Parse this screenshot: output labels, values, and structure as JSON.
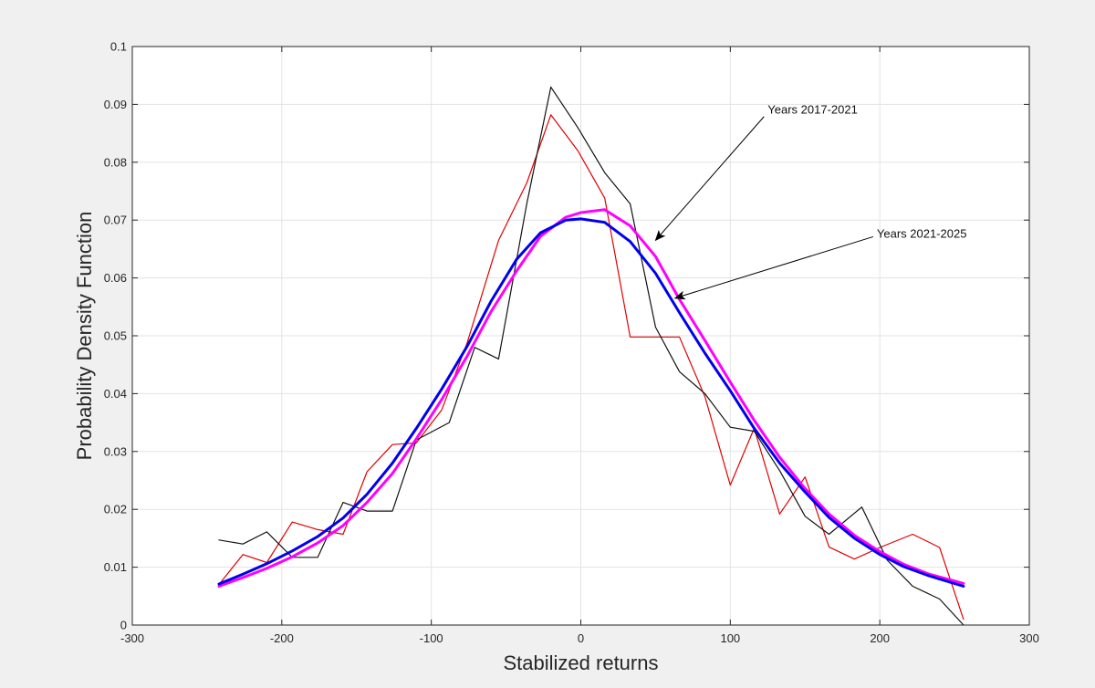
{
  "chart_data": {
    "type": "line",
    "title": "",
    "xlabel": "Stabilized returns",
    "ylabel": "Probability Density Function",
    "xlim": [
      -300,
      300
    ],
    "ylim": [
      0,
      0.1
    ],
    "xticks": [
      -300,
      -200,
      -100,
      0,
      100,
      200,
      300
    ],
    "yticks": [
      0,
      0.01,
      0.02,
      0.03,
      0.04,
      0.05,
      0.06,
      0.07,
      0.08,
      0.09,
      0.1
    ],
    "xtick_labels": [
      "-300",
      "-200",
      "-100",
      "0",
      "100",
      "200",
      "300"
    ],
    "ytick_labels": [
      "0",
      "0.01",
      "0.02",
      "0.03",
      "0.04",
      "0.05",
      "0.06",
      "0.07",
      "0.08",
      "0.09",
      "0.1"
    ],
    "grid": true,
    "series": [
      {
        "color": "#ff00ff",
        "x": [
          -242,
          -226,
          -210,
          -193,
          -176,
          -159,
          -143,
          -126,
          -110,
          -93,
          -76,
          -60,
          -43,
          -27,
          -10,
          0,
          16,
          33,
          50,
          66,
          83,
          100,
          116,
          133,
          150,
          166,
          183,
          200,
          216,
          233,
          256
        ],
        "y": [
          0.0067,
          0.0082,
          0.0098,
          0.0118,
          0.0142,
          0.0172,
          0.0212,
          0.0262,
          0.0322,
          0.039,
          0.0465,
          0.0542,
          0.0612,
          0.0672,
          0.0705,
          0.0713,
          0.0718,
          0.069,
          0.0637,
          0.0563,
          0.0492,
          0.042,
          0.0354,
          0.029,
          0.0236,
          0.0192,
          0.0155,
          0.0127,
          0.0105,
          0.0088,
          0.0072
        ]
      },
      {
        "color": "#0000ee",
        "x": [
          -242,
          -226,
          -210,
          -193,
          -176,
          -159,
          -143,
          -126,
          -110,
          -93,
          -76,
          -60,
          -43,
          -27,
          -10,
          0,
          16,
          33,
          50,
          66,
          83,
          100,
          116,
          133,
          150,
          166,
          183,
          200,
          216,
          233,
          256
        ],
        "y": [
          0.0071,
          0.0088,
          0.0106,
          0.0128,
          0.0153,
          0.0185,
          0.0226,
          0.028,
          0.034,
          0.0408,
          0.0482,
          0.056,
          0.0632,
          0.0678,
          0.07,
          0.0702,
          0.0696,
          0.0663,
          0.0608,
          0.054,
          0.047,
          0.0405,
          0.034,
          0.028,
          0.023,
          0.0186,
          0.015,
          0.0122,
          0.0101,
          0.0085,
          0.0067
        ]
      },
      {
        "color": "#e00000",
        "x": [
          -242,
          -226,
          -210,
          -193,
          -176,
          -159,
          -143,
          -126,
          -110,
          -93,
          -76,
          -55,
          -36,
          -20,
          -2,
          16,
          33,
          50,
          66,
          83,
          100,
          116,
          133,
          150,
          166,
          183,
          200,
          222,
          240,
          256
        ],
        "y": [
          0.007,
          0.0122,
          0.0108,
          0.0178,
          0.0165,
          0.0157,
          0.0265,
          0.0312,
          0.0315,
          0.0372,
          0.0488,
          0.0665,
          0.0765,
          0.0882,
          0.082,
          0.0738,
          0.0498,
          0.0498,
          0.0498,
          0.0395,
          0.0242,
          0.034,
          0.0192,
          0.0256,
          0.0135,
          0.0114,
          0.0134,
          0.0157,
          0.0134,
          0.001
        ]
      },
      {
        "color": "#111111",
        "x": [
          -242,
          -226,
          -210,
          -193,
          -176,
          -159,
          -143,
          -126,
          -110,
          -88,
          -71,
          -55,
          -36,
          -20,
          -2,
          16,
          33,
          50,
          66,
          83,
          100,
          116,
          133,
          150,
          166,
          188,
          205,
          222,
          240,
          256
        ],
        "y": [
          0.0147,
          0.014,
          0.0161,
          0.0117,
          0.0117,
          0.0212,
          0.0197,
          0.0197,
          0.032,
          0.035,
          0.048,
          0.046,
          0.073,
          0.093,
          0.086,
          0.0782,
          0.0728,
          0.0515,
          0.0438,
          0.04,
          0.0342,
          0.0335,
          0.0267,
          0.0188,
          0.0157,
          0.0204,
          0.0112,
          0.0067,
          0.0045,
          0.0
        ]
      }
    ],
    "annotations": [
      {
        "text": "Years 2017-2021",
        "text_at": [
          125,
          0.089
        ],
        "arrow_to": [
          50,
          0.0665
        ]
      },
      {
        "text": "Years 2021-2025",
        "text_at": [
          198,
          0.0676
        ],
        "arrow_to": [
          63,
          0.0565
        ]
      }
    ]
  }
}
